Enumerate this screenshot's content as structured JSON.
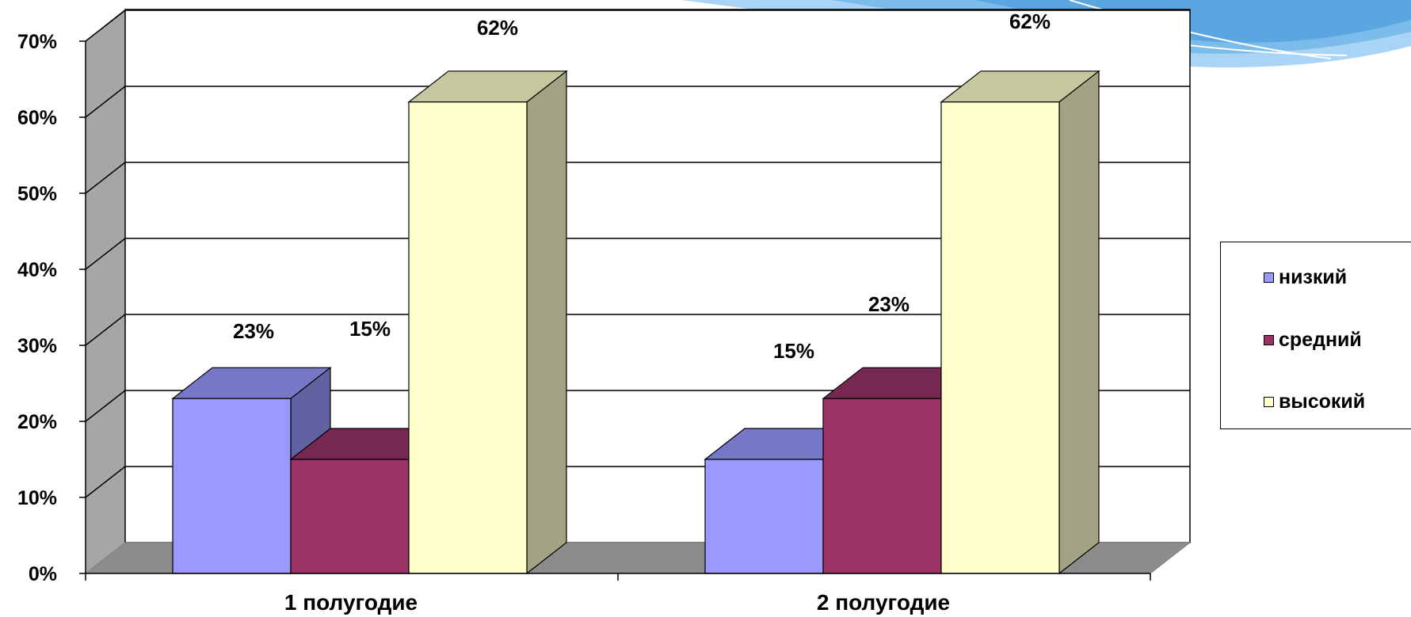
{
  "chart_data": {
    "type": "bar",
    "categories": [
      "1 полугодие",
      "2 полугодие"
    ],
    "series": [
      {
        "name": "низкий",
        "values": [
          23,
          15
        ],
        "labels": [
          "23%",
          "15%"
        ],
        "color": "#9999ff"
      },
      {
        "name": "средний",
        "values": [
          15,
          23
        ],
        "labels": [
          "15%",
          "23%"
        ],
        "color": "#993366"
      },
      {
        "name": "высокий",
        "values": [
          62,
          62
        ],
        "labels": [
          "62%",
          "62%"
        ],
        "color": "#ffffcc"
      }
    ],
    "ylim": [
      0,
      70
    ],
    "yticks": [
      "0%",
      "10%",
      "20%",
      "30%",
      "40%",
      "50%",
      "60%",
      "70%"
    ],
    "grid": true,
    "legend_position": "right",
    "style": "3d-clustered-column"
  }
}
